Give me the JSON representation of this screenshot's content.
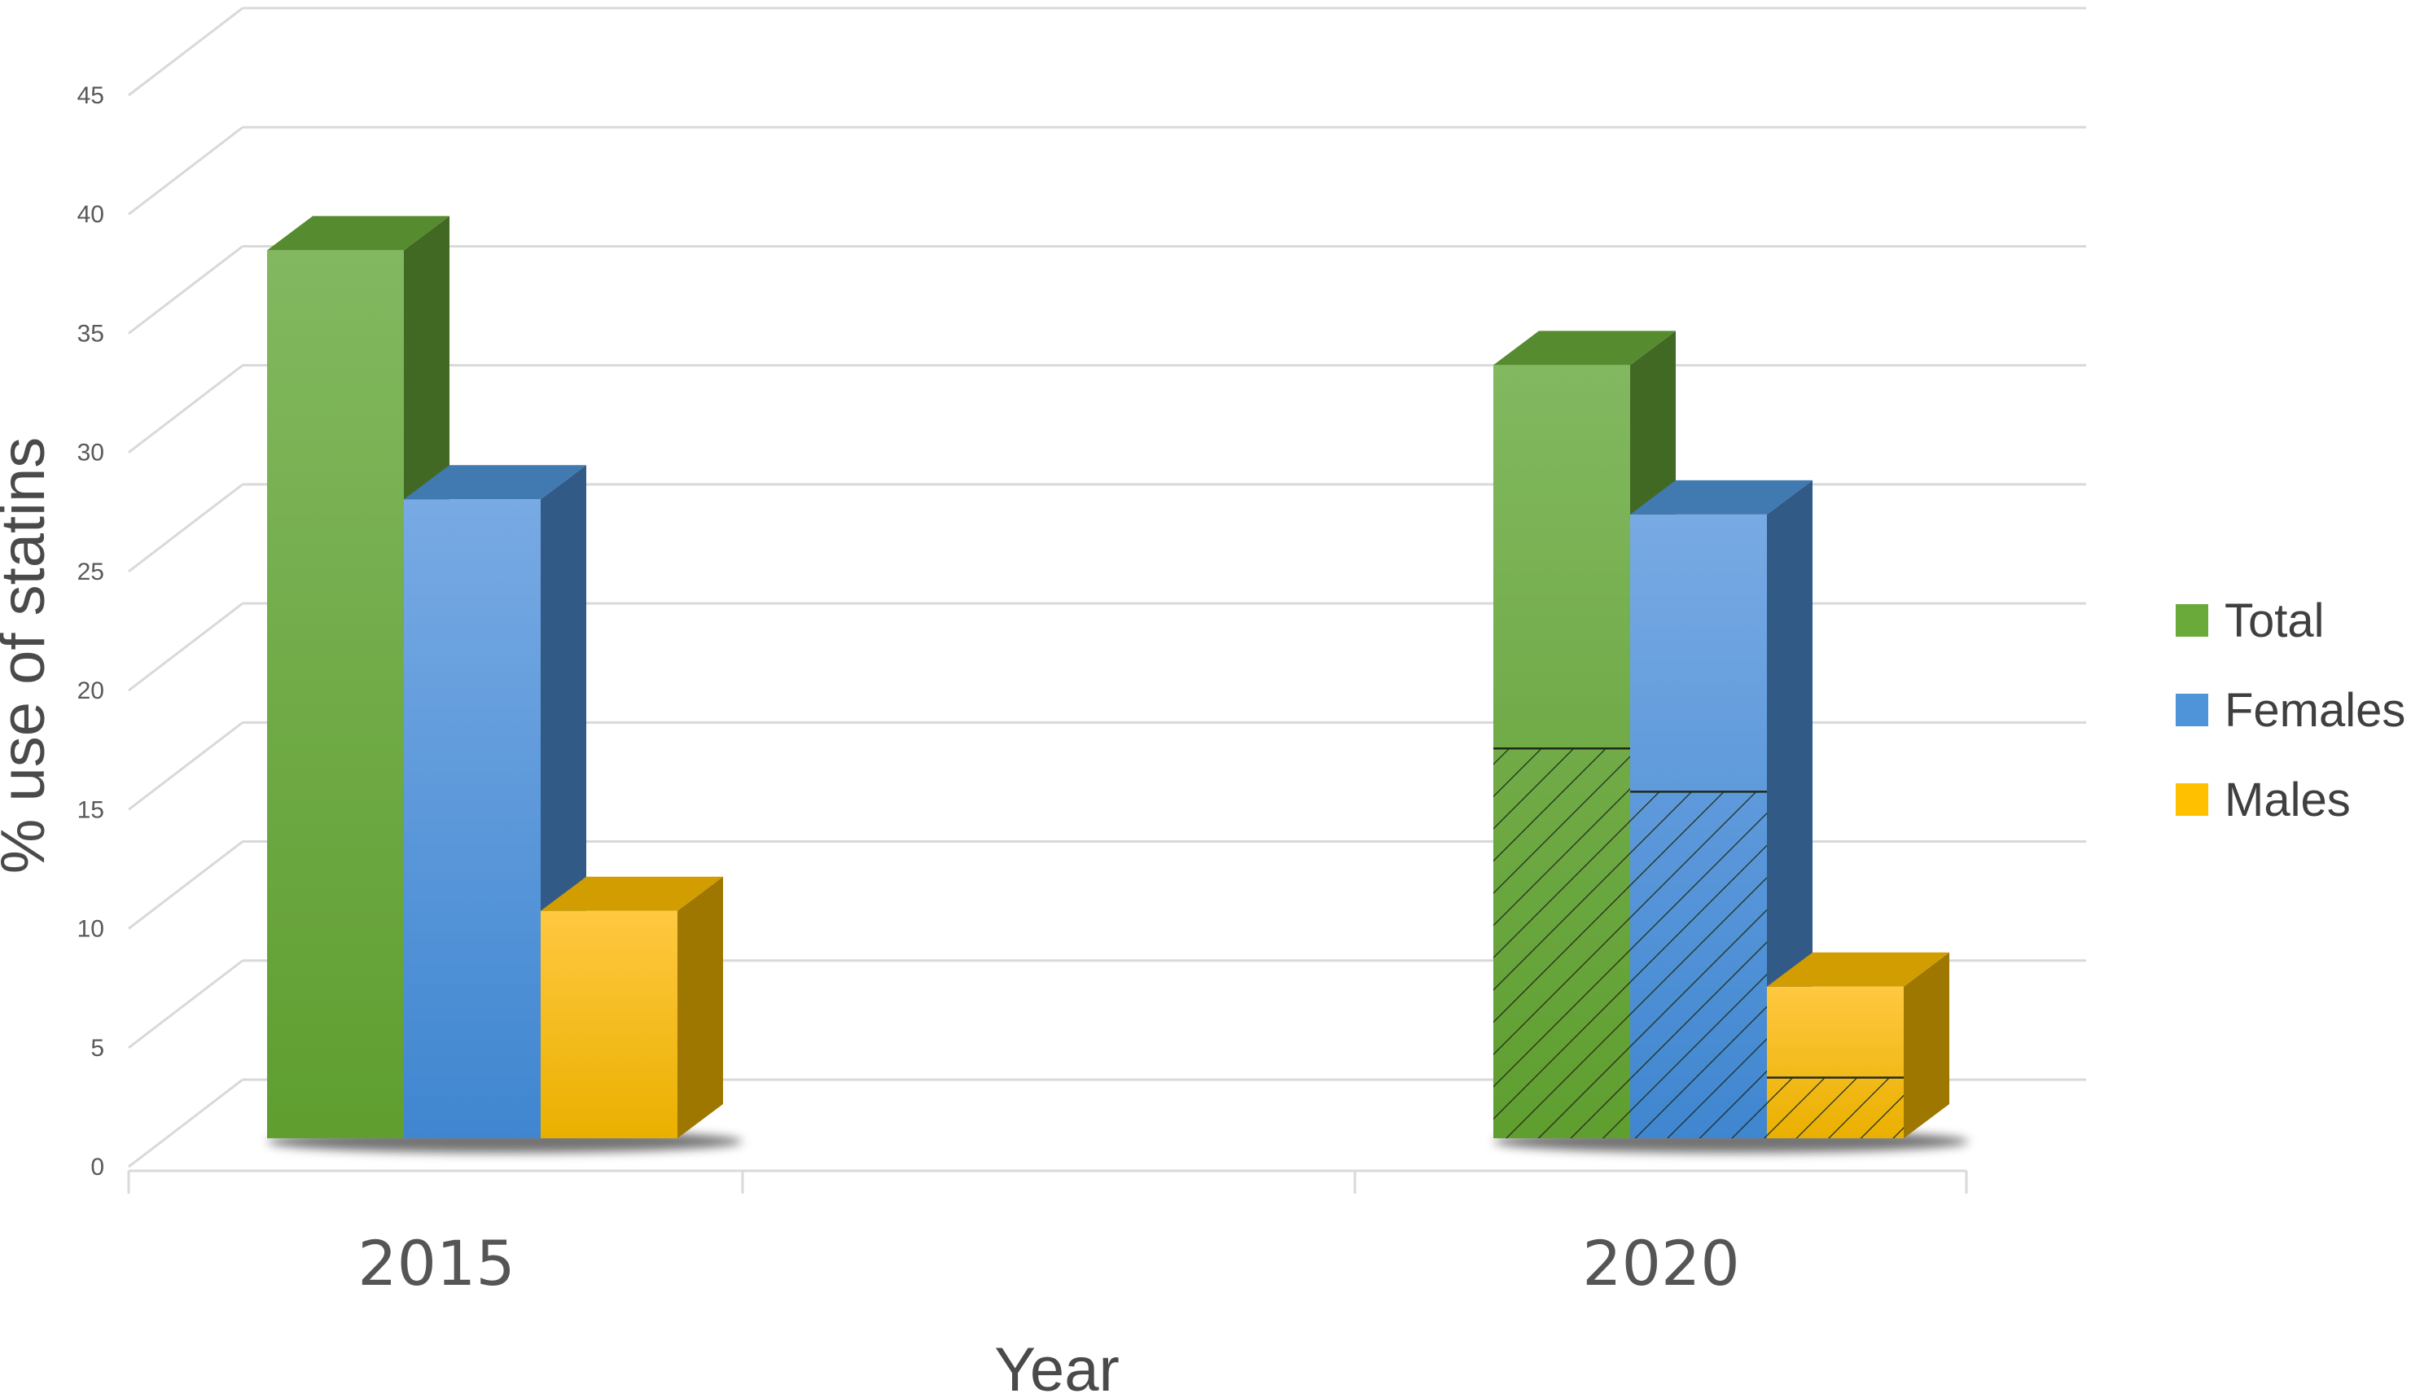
{
  "chart_data": {
    "type": "bar",
    "title": "",
    "xlabel": "Year",
    "ylabel": "% use of statins",
    "categories": [
      "2015",
      "2020"
    ],
    "ylim": [
      0,
      45
    ],
    "yticks": [
      0,
      5,
      10,
      15,
      20,
      25,
      30,
      35,
      40,
      45
    ],
    "grid": true,
    "legend_position": "right",
    "series": [
      {
        "name": "Total",
        "color": "#6aaa3a",
        "values": [
          41,
          35.7
        ],
        "hatched_portion": [
          null,
          18
        ]
      },
      {
        "name": "Females",
        "color": "#4f93d8",
        "values": [
          29.5,
          28.8
        ],
        "hatched_portion": [
          null,
          16
        ]
      },
      {
        "name": "Males",
        "color": "#ffc000",
        "values": [
          10.5,
          7
        ],
        "hatched_portion": [
          null,
          2.8
        ]
      }
    ]
  }
}
